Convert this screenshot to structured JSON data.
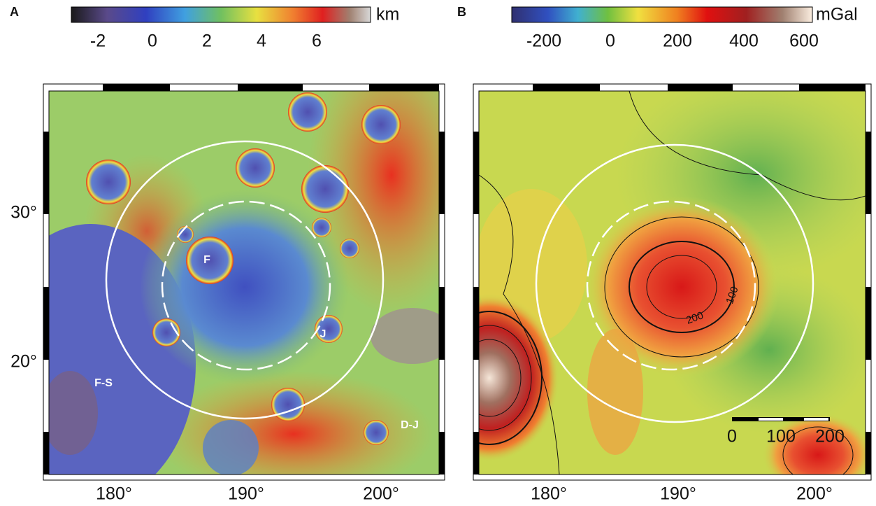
{
  "panels": [
    {
      "label": "A",
      "colorbar": {
        "ticks": [
          -2,
          0,
          2,
          4,
          6
        ],
        "unit": "km"
      },
      "x_ticks": [
        "180°",
        "190°",
        "200°"
      ],
      "y_ticks": [
        "30°",
        "20°"
      ],
      "annotations": [
        "F",
        "J",
        "F-S",
        "D-J"
      ]
    },
    {
      "label": "B",
      "colorbar": {
        "ticks": [
          -200,
          0,
          200,
          400,
          600
        ],
        "unit": "mGal"
      },
      "x_ticks": [
        "180°",
        "190°",
        "200°"
      ],
      "contour_labels": [
        "100",
        "200"
      ],
      "scale_bar": [
        "0",
        "100",
        "200"
      ]
    }
  ]
}
